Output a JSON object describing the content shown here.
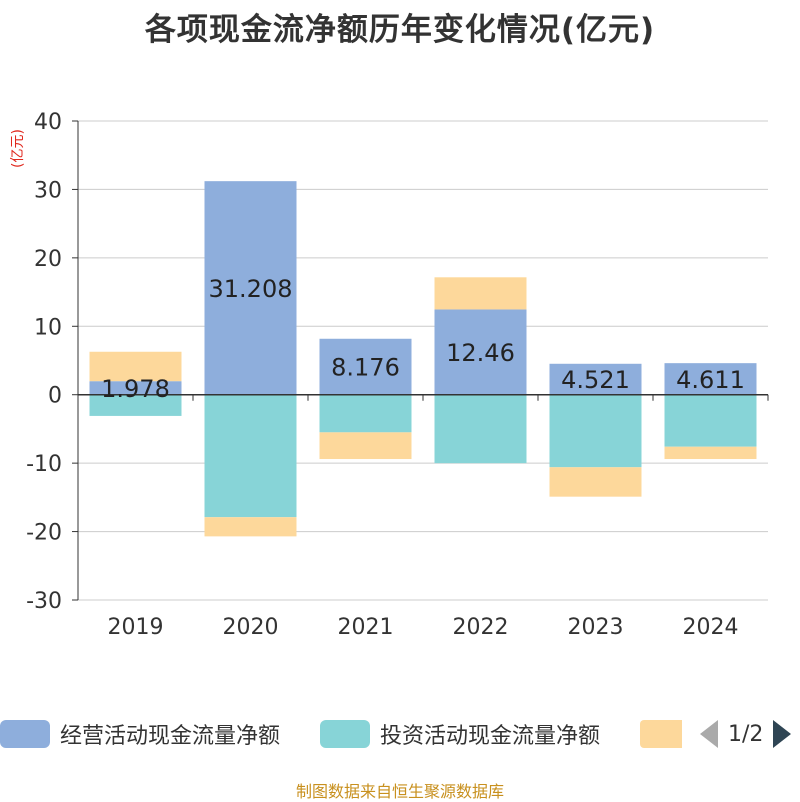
{
  "chart_data": {
    "type": "bar",
    "stacked": true,
    "title": "各项现金流净额历年变化情况(亿元)",
    "ylabel": "(亿元)",
    "xlabel": "",
    "ylim": [
      -30,
      40
    ],
    "yticks": [
      40,
      30,
      20,
      10,
      0,
      -10,
      -20,
      -30
    ],
    "categories": [
      "2019",
      "2020",
      "2021",
      "2022",
      "2023",
      "2024"
    ],
    "series": [
      {
        "name": "经营活动现金流量净额",
        "color": "#8eaedc",
        "values": [
          1.978,
          31.208,
          8.176,
          12.46,
          4.521,
          4.611
        ],
        "show_labels": true
      },
      {
        "name": "投资活动现金流量净额",
        "color": "#87d4d7",
        "values": [
          -3.1,
          -17.9,
          -5.5,
          -10.0,
          -10.6,
          -7.6
        ],
        "show_labels": false
      },
      {
        "name": "",
        "color": "#fdd89b",
        "values": [
          4.3,
          -2.8,
          -3.9,
          4.7,
          -4.3,
          -1.8
        ],
        "show_labels": false
      }
    ]
  },
  "legend": {
    "items": [
      "经营活动现金流量净额",
      "投资活动现金流量净额",
      ""
    ],
    "page_label": "1/2"
  },
  "footer": "制图数据来自恒生聚源数据库"
}
